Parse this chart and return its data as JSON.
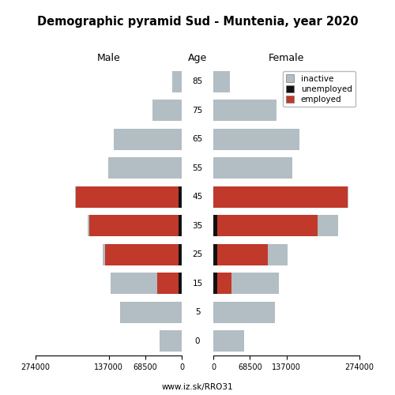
{
  "title": "Demographic pyramid Sud - Muntenia, year 2020",
  "age_labels": [
    "85",
    "75",
    "65",
    "55",
    "45",
    "35",
    "25",
    "15",
    "5",
    "0"
  ],
  "age_positions": [
    9,
    8,
    7,
    6,
    5,
    4,
    3,
    2,
    1,
    0
  ],
  "male_inactive": [
    18000,
    55000,
    128000,
    138000,
    2000,
    3000,
    4000,
    88000,
    115000,
    41000
  ],
  "male_unemployed": [
    0,
    0,
    0,
    0,
    5500,
    5500,
    5500,
    5500,
    0,
    0
  ],
  "male_employed": [
    0,
    0,
    0,
    0,
    193000,
    168000,
    138000,
    40000,
    0,
    0
  ],
  "female_inactive": [
    31000,
    118000,
    162000,
    148000,
    2000,
    38000,
    36000,
    88000,
    115000,
    58000
  ],
  "female_unemployed": [
    0,
    0,
    0,
    0,
    0,
    7500,
    7500,
    7500,
    0,
    0
  ],
  "female_employed": [
    0,
    0,
    0,
    0,
    252000,
    188000,
    95000,
    27000,
    0,
    0
  ],
  "color_inactive": "#b2bec3",
  "color_unemployed": "#111111",
  "color_employed": "#c0392b",
  "bar_height": 0.75,
  "xlim": 274000,
  "footer": "www.iz.sk/RRO31"
}
